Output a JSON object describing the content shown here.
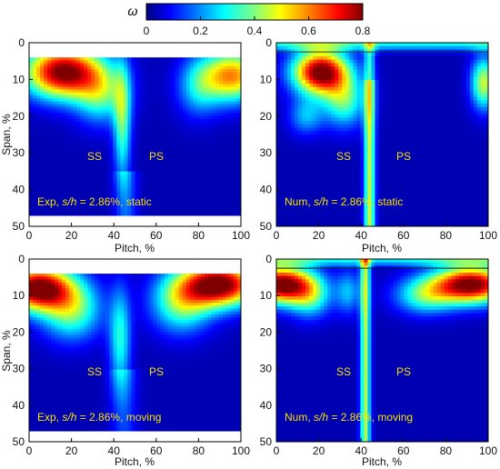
{
  "colorbar": {
    "symbol": "ω",
    "ticks": [
      0,
      0.2,
      0.4,
      0.6,
      0.8
    ],
    "tick_labels": [
      "0",
      "0.2",
      "0.4",
      "0.6",
      "0.8"
    ],
    "range": [
      0,
      0.8
    ],
    "colormap": "jet"
  },
  "chart_data": [
    {
      "type": "heatmap",
      "panel": "top-left",
      "xlabel": "Pitch, %",
      "ylabel": "Span, %",
      "xlim": [
        0,
        100
      ],
      "ylim": [
        50,
        0
      ],
      "y_reversed": true,
      "xticks": [
        0,
        20,
        40,
        60,
        80,
        100
      ],
      "yticks": [
        0,
        10,
        20,
        30,
        40,
        50
      ],
      "xtick_labels": [
        "0",
        "20",
        "40",
        "60",
        "80",
        "100"
      ],
      "ytick_labels": [
        "0",
        "10",
        "20",
        "30",
        "40",
        "50"
      ],
      "data_span_range": [
        4,
        47
      ],
      "annotations": {
        "ss": "SS",
        "ps": "PS",
        "caption_prefix": "Exp, ",
        "caption_italic": "s/h",
        "caption_suffix": " = 2.86%, static"
      },
      "features": [
        {
          "kind": "loss_core",
          "pitch": 18,
          "span": 8,
          "peak": 0.8
        },
        {
          "kind": "loss_core",
          "pitch": 95,
          "span": 9,
          "peak": 0.55
        },
        {
          "kind": "wake",
          "pitch_range": [
            38,
            50
          ],
          "peak": 0.35
        }
      ]
    },
    {
      "type": "heatmap",
      "panel": "top-right",
      "xlabel": "Pitch, %",
      "ylabel": "",
      "xlim": [
        0,
        100
      ],
      "ylim": [
        50,
        0
      ],
      "y_reversed": true,
      "xticks": [
        0,
        20,
        40,
        60,
        80,
        100
      ],
      "yticks": [
        0,
        10,
        20,
        30,
        40,
        50
      ],
      "xtick_labels": [
        "0",
        "20",
        "40",
        "60",
        "80",
        "100"
      ],
      "ytick_labels": [
        "0",
        "10",
        "20",
        "30",
        "40",
        "50"
      ],
      "data_span_range": [
        0,
        50
      ],
      "annotations": {
        "ss": "SS",
        "ps": "PS",
        "caption_prefix": "Num, ",
        "caption_italic": "s/h",
        "caption_suffix": " = 2.86%, static"
      },
      "features": [
        {
          "kind": "loss_core",
          "pitch": 22,
          "span": 8,
          "peak": 0.8
        },
        {
          "kind": "loss_core",
          "pitch": 97,
          "span": 10,
          "peak": 0.45
        },
        {
          "kind": "wake",
          "pitch_range": [
            40,
            47
          ],
          "peak": 0.4
        }
      ]
    },
    {
      "type": "heatmap",
      "panel": "bottom-left",
      "xlabel": "Pitch, %",
      "ylabel": "Span, %",
      "xlim": [
        0,
        100
      ],
      "ylim": [
        50,
        0
      ],
      "y_reversed": true,
      "xticks": [
        0,
        20,
        40,
        60,
        80,
        100
      ],
      "yticks": [
        0,
        10,
        20,
        30,
        40,
        50
      ],
      "xtick_labels": [
        "0",
        "20",
        "40",
        "60",
        "80",
        "100"
      ],
      "ytick_labels": [
        "0",
        "10",
        "20",
        "30",
        "40",
        "50"
      ],
      "data_span_range": [
        4,
        47
      ],
      "annotations": {
        "ss": "SS",
        "ps": "PS",
        "caption_prefix": "Exp, ",
        "caption_italic": "s/h",
        "caption_suffix": " = 2.86%, moving"
      },
      "features": [
        {
          "kind": "loss_core",
          "pitch": 5,
          "span": 8,
          "peak": 0.8
        },
        {
          "kind": "loss_core",
          "pitch": 90,
          "span": 7,
          "peak": 0.8
        },
        {
          "kind": "wake",
          "pitch_range": [
            38,
            50
          ],
          "peak": 0.3
        }
      ]
    },
    {
      "type": "heatmap",
      "panel": "bottom-right",
      "xlabel": "Pitch, %",
      "ylabel": "",
      "xlim": [
        0,
        100
      ],
      "ylim": [
        50,
        0
      ],
      "y_reversed": true,
      "xticks": [
        0,
        20,
        40,
        60,
        80,
        100
      ],
      "yticks": [
        0,
        10,
        20,
        30,
        40,
        50
      ],
      "xtick_labels": [
        "0",
        "20",
        "40",
        "60",
        "80",
        "100"
      ],
      "ytick_labels": [
        "0",
        "10",
        "20",
        "30",
        "40",
        "50"
      ],
      "data_span_range": [
        0,
        50
      ],
      "annotations": {
        "ss": "SS",
        "ps": "PS",
        "caption_prefix": "Num, ",
        "caption_italic": "s/h",
        "caption_suffix": " = 2.86%, moving"
      },
      "features": [
        {
          "kind": "loss_core",
          "pitch": 3,
          "span": 7,
          "peak": 0.8
        },
        {
          "kind": "loss_core",
          "pitch": 92,
          "span": 7,
          "peak": 0.8
        },
        {
          "kind": "wake",
          "pitch_range": [
            38,
            46
          ],
          "peak": 0.4
        }
      ]
    }
  ]
}
